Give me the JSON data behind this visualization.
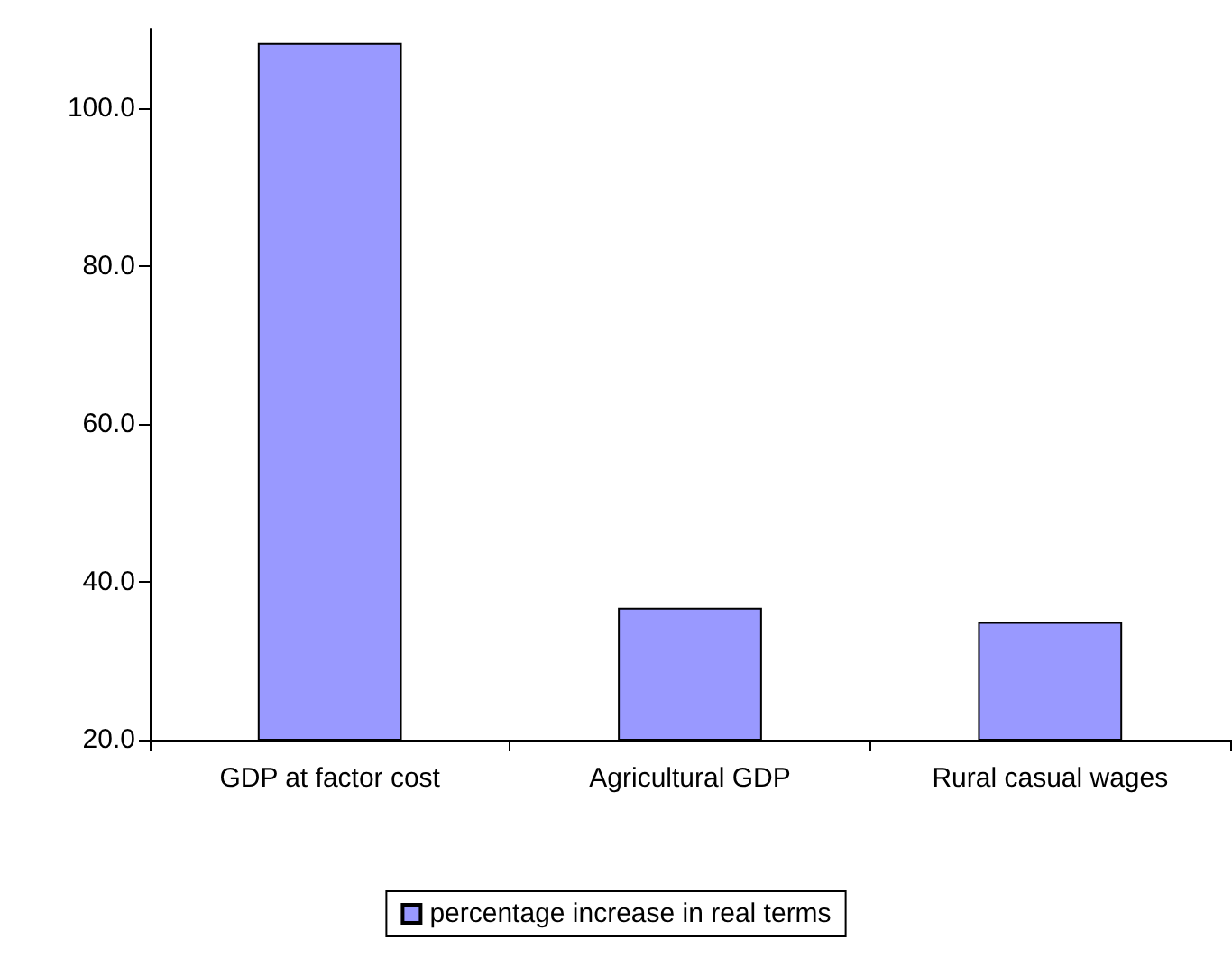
{
  "chart_data": {
    "type": "bar",
    "categories": [
      "GDP at factor cost",
      "Agricultural GDP",
      "Rural casual wages"
    ],
    "series": [
      {
        "name": "percentage increase in real terms",
        "color": "#9999ff",
        "values": [
          108.2,
          36.7,
          34.9
        ]
      }
    ],
    "ylim": [
      20,
      110
    ],
    "yticks": [
      {
        "value": 20,
        "label": "20.0"
      },
      {
        "value": 40,
        "label": "40.0"
      },
      {
        "value": 60,
        "label": "60.0"
      },
      {
        "value": 80,
        "label": "80.0"
      },
      {
        "value": 100,
        "label": "100.0"
      }
    ],
    "grid": false,
    "legend": "bottom"
  }
}
